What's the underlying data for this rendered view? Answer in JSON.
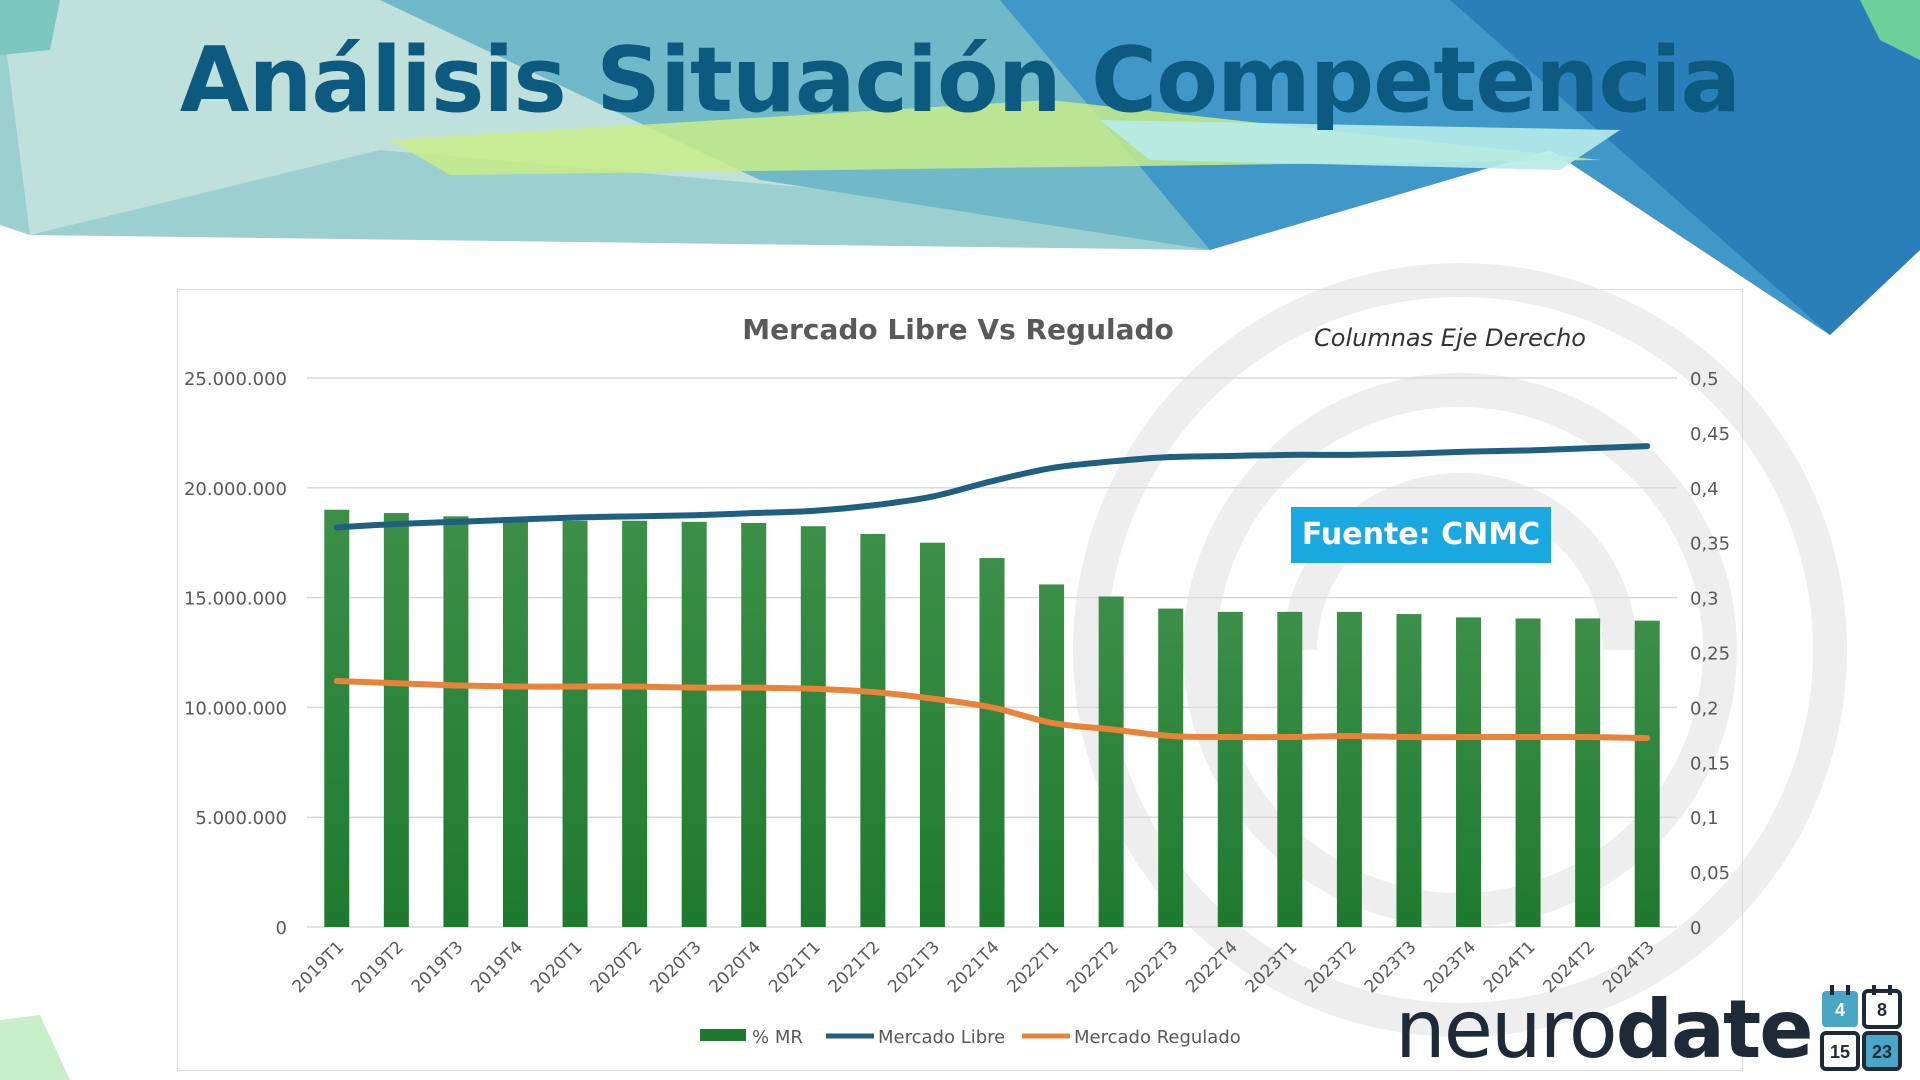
{
  "slide": {
    "title": "Análisis Situación Competencia",
    "source_badge": "Fuente: CNMC",
    "axis_note": "Columnas Eje Derecho"
  },
  "logo": {
    "word_light": "neuro",
    "word_bold": "date",
    "calendar_numbers": [
      "4",
      "8",
      "15",
      "23"
    ]
  },
  "colors": {
    "title": "#0d5a80",
    "bars": "#1e7a2e",
    "mercado_libre": "#1f5f80",
    "mercado_regulado": "#e8833a",
    "badge": "#1aa8e0"
  },
  "chart_data": {
    "type": "bar+line",
    "title": "Mercado Libre Vs Regulado",
    "categories": [
      "2019T1",
      "2019T2",
      "2019T3",
      "2019T4",
      "2020T1",
      "2020T2",
      "2020T3",
      "2020T4",
      "2021T1",
      "2021T2",
      "2021T3",
      "2021T4",
      "2022T1",
      "2022T2",
      "2022T3",
      "2022T4",
      "2023T1",
      "2023T2",
      "2023T3",
      "2023T4",
      "2024T1",
      "2024T2",
      "2024T3"
    ],
    "left_axis": {
      "ylim": [
        0,
        25000000
      ],
      "ticks": [
        "25.000.000",
        "20.000.000",
        "15.000.000",
        "10.000.000",
        "5.000.000",
        "0"
      ],
      "tick_values": [
        25000000,
        20000000,
        15000000,
        10000000,
        5000000,
        0
      ]
    },
    "right_axis": {
      "ylim": [
        0,
        0.5
      ],
      "ticks": [
        "0,5",
        "0,45",
        "0,4",
        "0,35",
        "0,3",
        "0,25",
        "0,2",
        "0,15",
        "0,1",
        "0,05",
        "0"
      ],
      "tick_values": [
        0.5,
        0.45,
        0.4,
        0.35,
        0.3,
        0.25,
        0.2,
        0.15,
        0.1,
        0.05,
        0
      ]
    },
    "series": [
      {
        "name": "% MR",
        "kind": "bar",
        "axis": "right",
        "values": [
          0.38,
          0.377,
          0.374,
          0.371,
          0.37,
          0.37,
          0.369,
          0.368,
          0.365,
          0.358,
          0.35,
          0.336,
          0.312,
          0.301,
          0.29,
          0.287,
          0.287,
          0.287,
          0.285,
          0.282,
          0.281,
          0.281,
          0.279
        ]
      },
      {
        "name": "Mercado Libre",
        "kind": "line",
        "axis": "left",
        "values": [
          18200000,
          18350000,
          18450000,
          18550000,
          18650000,
          18700000,
          18750000,
          18850000,
          18950000,
          19200000,
          19600000,
          20300000,
          20900000,
          21200000,
          21400000,
          21450000,
          21500000,
          21500000,
          21550000,
          21650000,
          21700000,
          21800000,
          21900000
        ]
      },
      {
        "name": "Mercado Regulado",
        "kind": "line",
        "axis": "left",
        "values": [
          11200000,
          11100000,
          11000000,
          10950000,
          10950000,
          10950000,
          10900000,
          10900000,
          10850000,
          10700000,
          10400000,
          10000000,
          9300000,
          9000000,
          8700000,
          8650000,
          8650000,
          8700000,
          8650000,
          8650000,
          8650000,
          8650000,
          8600000
        ]
      }
    ],
    "legend": "bottom",
    "grid": true
  }
}
